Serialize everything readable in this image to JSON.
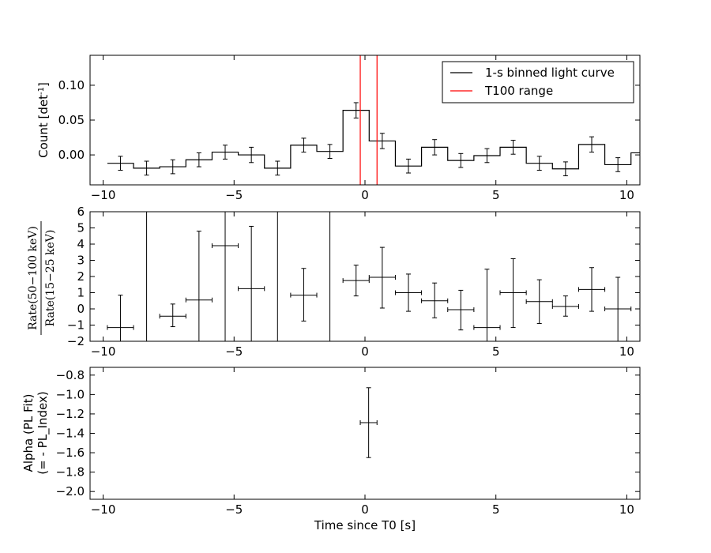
{
  "chart_data": [
    {
      "type": "line",
      "ylabel": "Count [det",
      "ylabel_sup": "-1",
      "ylabel_end": "]",
      "xlim": [
        -10.5,
        10.5
      ],
      "ylim": [
        -0.043,
        0.143
      ],
      "xticks": [
        -10,
        -5,
        0,
        5,
        10
      ],
      "xtick_labels": [
        "−10",
        "−5",
        "0",
        "5",
        "10"
      ],
      "yticks": [
        0.0,
        0.05,
        0.1
      ],
      "ytick_labels": [
        "0.00",
        "0.05",
        "0.10"
      ],
      "legend": {
        "placement": "top-right",
        "entries": [
          {
            "label": "1-s binned light curve",
            "color": "#000000"
          },
          {
            "label": "T100 range",
            "color": "#ff0000"
          }
        ]
      },
      "t100_range": [
        -0.18,
        0.46
      ],
      "series": [
        {
          "x": [
            -9.34,
            -8.34,
            -7.34,
            -6.34,
            -5.34,
            -4.34,
            -3.34,
            -2.34,
            -1.34,
            -0.34,
            0.66,
            1.66,
            2.66,
            3.66,
            4.66,
            5.66,
            6.66,
            7.66,
            8.66,
            9.66
          ],
          "y": [
            -0.012,
            -0.019,
            -0.017,
            -0.007,
            0.004,
            0.0,
            -0.019,
            0.014,
            0.005,
            0.064,
            0.02,
            -0.016,
            0.011,
            -0.008,
            -0.001,
            0.011,
            -0.012,
            -0.02,
            0.015,
            -0.014
          ],
          "yerr": [
            0.01,
            0.01,
            0.01,
            0.01,
            0.01,
            0.011,
            0.01,
            0.01,
            0.01,
            0.011,
            0.011,
            0.01,
            0.011,
            0.01,
            0.01,
            0.01,
            0.01,
            0.01,
            0.011,
            0.01
          ],
          "step_width": 1.0
        }
      ],
      "edge_bin": {
        "x": 10.5,
        "y": 0.003
      }
    },
    {
      "type": "scatter",
      "ylabel_top": "Rate(50−100 keV)",
      "ylabel_bottom": "Rate(15−25 keV)",
      "xlim": [
        -10.5,
        10.5
      ],
      "ylim": [
        -2,
        6
      ],
      "xticks": [
        -10,
        -5,
        0,
        5,
        10
      ],
      "xtick_labels": [
        "−10",
        "−5",
        "0",
        "5",
        "10"
      ],
      "yticks": [
        -2,
        -1,
        0,
        1,
        2,
        3,
        4,
        5,
        6
      ],
      "ytick_labels": [
        "−2",
        "−1",
        "0",
        "1",
        "2",
        "3",
        "4",
        "5",
        "6"
      ],
      "points": [
        {
          "x": -9.34,
          "y": -1.15,
          "ylo": -2.0,
          "yhi": 0.85,
          "xw": 0.5
        },
        {
          "x": -8.34,
          "y": 6.0,
          "ylo": -2.0,
          "yhi": 6.0,
          "xw": 0.0
        },
        {
          "x": -7.34,
          "y": -0.45,
          "ylo": -1.1,
          "yhi": 0.3,
          "xw": 0.5
        },
        {
          "x": -6.34,
          "y": 0.55,
          "ylo": -2.0,
          "yhi": 4.8,
          "xw": 0.5
        },
        {
          "x": -5.34,
          "y": 3.9,
          "ylo": -2.0,
          "yhi": 6.0,
          "xw": 0.5
        },
        {
          "x": -4.34,
          "y": 1.25,
          "ylo": -2.0,
          "yhi": 5.1,
          "xw": 0.5
        },
        {
          "x": -3.34,
          "y": 6.0,
          "ylo": -2.0,
          "yhi": 6.0,
          "xw": 0.0
        },
        {
          "x": -2.34,
          "y": 0.85,
          "ylo": -0.75,
          "yhi": 2.5,
          "xw": 0.5
        },
        {
          "x": -1.34,
          "y": 6.0,
          "ylo": -2.0,
          "yhi": 6.0,
          "xw": 0.0
        },
        {
          "x": -0.34,
          "y": 1.75,
          "ylo": 0.8,
          "yhi": 2.7,
          "xw": 0.5
        },
        {
          "x": 0.66,
          "y": 1.95,
          "ylo": 0.05,
          "yhi": 3.8,
          "xw": 0.5
        },
        {
          "x": 1.66,
          "y": 1.0,
          "ylo": -0.15,
          "yhi": 2.15,
          "xw": 0.5
        },
        {
          "x": 2.66,
          "y": 0.5,
          "ylo": -0.55,
          "yhi": 1.6,
          "xw": 0.5
        },
        {
          "x": 3.66,
          "y": -0.05,
          "ylo": -1.3,
          "yhi": 1.15,
          "xw": 0.5
        },
        {
          "x": 4.66,
          "y": -1.15,
          "ylo": -2.0,
          "yhi": 2.45,
          "xw": 0.5
        },
        {
          "x": 5.66,
          "y": 1.0,
          "ylo": -1.15,
          "yhi": 3.1,
          "xw": 0.5
        },
        {
          "x": 6.66,
          "y": 0.45,
          "ylo": -0.9,
          "yhi": 1.8,
          "xw": 0.5
        },
        {
          "x": 7.66,
          "y": 0.15,
          "ylo": -0.45,
          "yhi": 0.8,
          "xw": 0.5
        },
        {
          "x": 8.66,
          "y": 1.2,
          "ylo": -0.15,
          "yhi": 2.55,
          "xw": 0.5
        },
        {
          "x": 9.66,
          "y": 0.0,
          "ylo": -2.0,
          "yhi": 1.95,
          "xw": 0.5
        }
      ]
    },
    {
      "type": "scatter",
      "ylabel_line1": "Alpha (PL Fit)",
      "ylabel_line2": "(= - PL_Index)",
      "xlabel": "Time since T0 [s]",
      "xlim": [
        -10.5,
        10.5
      ],
      "ylim": [
        -2.08,
        -0.72
      ],
      "xticks": [
        -10,
        -5,
        0,
        5,
        10
      ],
      "xtick_labels": [
        "−10",
        "−5",
        "0",
        "5",
        "10"
      ],
      "yticks": [
        -2.0,
        -1.8,
        -1.6,
        -1.4,
        -1.2,
        -1.0,
        -0.8
      ],
      "ytick_labels": [
        "−2.0",
        "−1.8",
        "−1.6",
        "−1.4",
        "−1.2",
        "−1.0",
        "−0.8"
      ],
      "points": [
        {
          "x": 0.14,
          "y": -1.29,
          "ylo": -1.65,
          "yhi": -0.93,
          "xw": 0.32
        }
      ]
    }
  ]
}
